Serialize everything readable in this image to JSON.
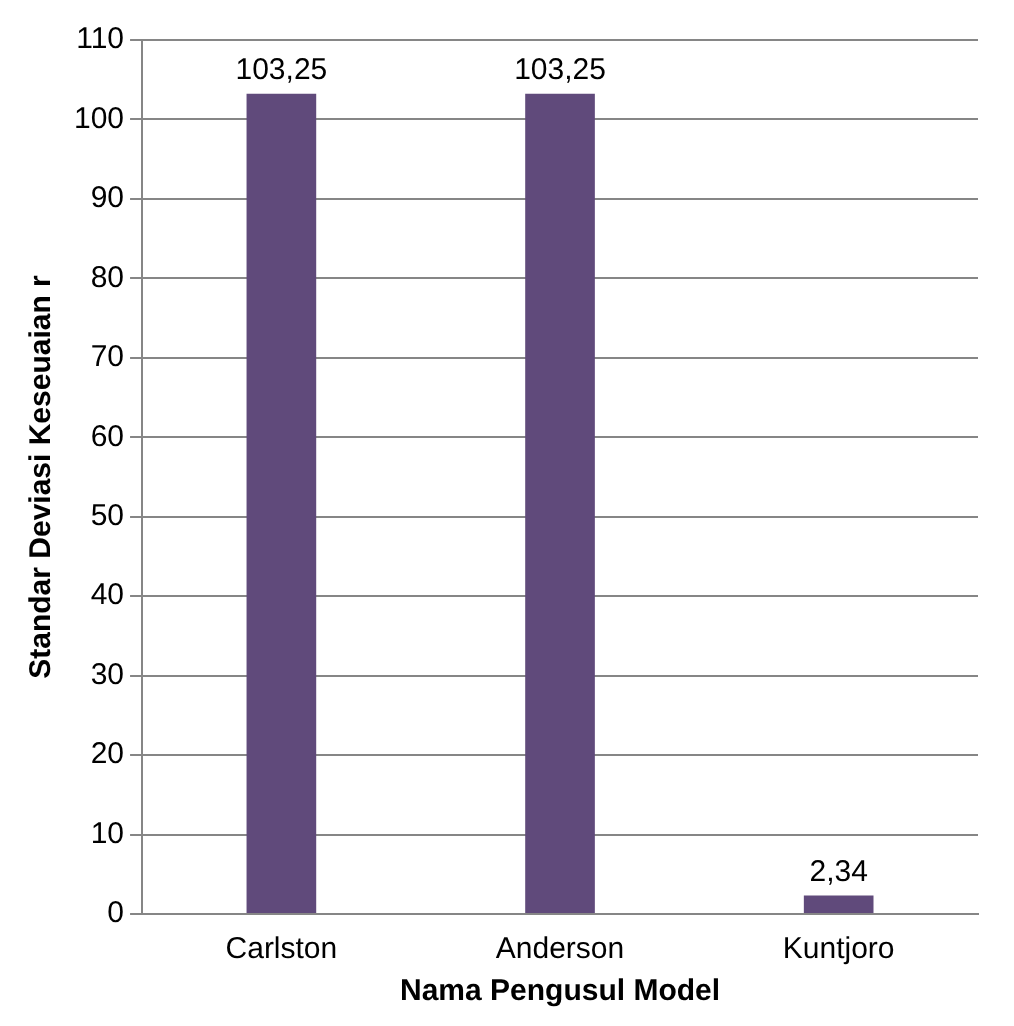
{
  "chart_data": {
    "type": "bar",
    "xlabel": "Nama Pengusul Model",
    "ylabel": "Standar Deviasi Keseuaian r",
    "categories": [
      "Carlston",
      "Anderson",
      "Kuntjoro"
    ],
    "values": [
      103.25,
      103.25,
      2.34
    ],
    "color": "#604a7b",
    "value_labels": [
      "103,25",
      "103,25",
      "2,34"
    ],
    "ylim": [
      0,
      110
    ],
    "yticks": [
      0,
      10,
      20,
      30,
      40,
      50,
      60,
      70,
      80,
      90,
      100,
      110
    ],
    "grid": "y",
    "legend": false
  }
}
